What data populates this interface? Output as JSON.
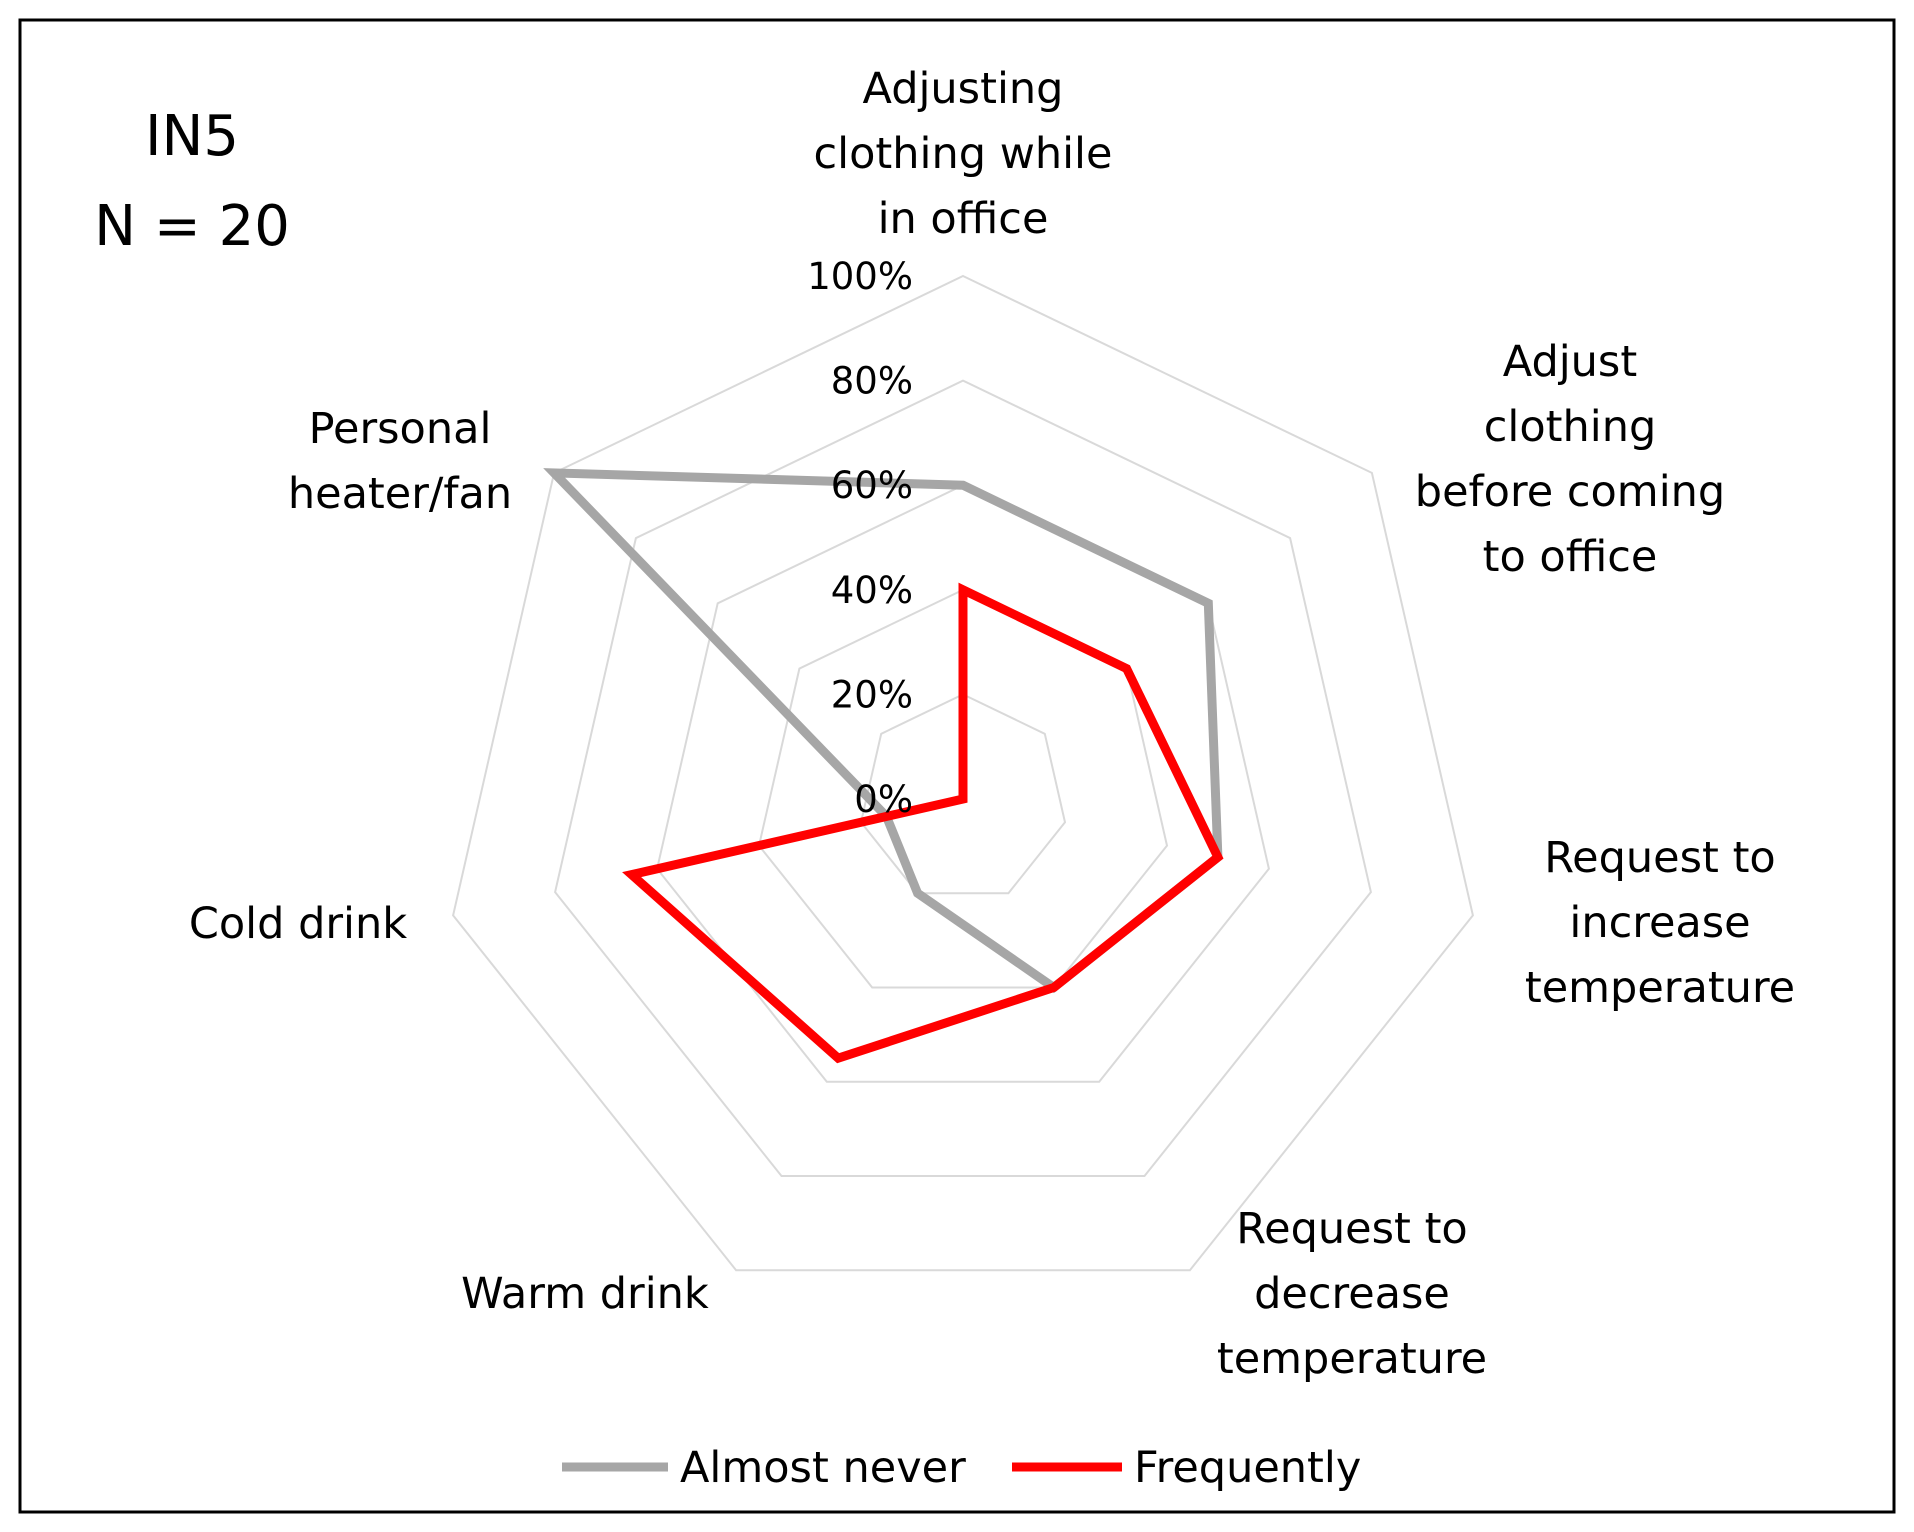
{
  "chart_data": {
    "type": "radar",
    "annotations": [
      "IN5",
      "N = 20"
    ],
    "categories": [
      "Adjusting clothing while in office",
      "Adjust clothing before coming to office",
      "Request to increase temperature",
      "Request to decrease temperature",
      "Warm drink",
      "Cold drink",
      "Personal heater/fan"
    ],
    "ticks": [
      "0%",
      "20%",
      "40%",
      "60%",
      "80%",
      "100%"
    ],
    "rlim": [
      0,
      100
    ],
    "grid": true,
    "legend_position": "bottom",
    "series": [
      {
        "name": "Almost never",
        "color": "#a6a6a6",
        "values": [
          60,
          60,
          50,
          40,
          20,
          15,
          100
        ]
      },
      {
        "name": "Frequently",
        "color": "#ff0000",
        "values": [
          40,
          40,
          50,
          40,
          55,
          65,
          0
        ]
      }
    ]
  }
}
